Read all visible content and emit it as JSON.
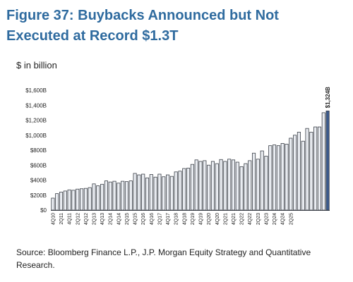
{
  "title": "Figure 37: Buybacks Announced but Not Executed at Record $1.3T",
  "units_label": "$ in billion",
  "source": "Source: Bloomberg Finance L.P., J.P. Morgan Equity Strategy and Quantitative Research.",
  "colors": {
    "title": "#2f6b9f",
    "bar_fill": "#e9ecf1",
    "bar_stroke": "#3a3f47",
    "last_bar_fill": "#3b5a8c"
  },
  "chart_data": {
    "type": "bar",
    "title": "Figure 37: Buybacks Announced but Not Executed at Record $1.3T",
    "xlabel": "",
    "ylabel": "$ in billion",
    "ylim": [
      0,
      1600
    ],
    "yticks": [
      0,
      200,
      400,
      600,
      800,
      1000,
      1200,
      1400,
      1600
    ],
    "ytick_labels": [
      "$0",
      "$200B",
      "$400B",
      "$600B",
      "$800B",
      "$1,000B",
      "$1,200B",
      "$1,400B",
      "$1,600B"
    ],
    "grid": false,
    "x_tick_labels": [
      "4Q10",
      "2Q11",
      "4Q11",
      "2Q12",
      "4Q12",
      "2Q13",
      "4Q13",
      "2Q14",
      "4Q14",
      "2Q15",
      "4Q15",
      "2Q16",
      "4Q16",
      "2Q17",
      "4Q17",
      "2Q18",
      "4Q18",
      "2Q19",
      "4Q19",
      "2Q20",
      "4Q20",
      "2Q21",
      "4Q21",
      "2Q22",
      "4Q22",
      "2Q23",
      "4Q23",
      "2Q24",
      "4Q24",
      "2Q25"
    ],
    "values": [
      160,
      220,
      240,
      255,
      270,
      265,
      280,
      285,
      290,
      300,
      350,
      325,
      345,
      390,
      375,
      385,
      360,
      385,
      380,
      390,
      490,
      470,
      480,
      430,
      475,
      440,
      480,
      445,
      470,
      450,
      510,
      520,
      555,
      560,
      610,
      670,
      650,
      660,
      600,
      650,
      620,
      675,
      650,
      680,
      670,
      640,
      580,
      620,
      660,
      760,
      680,
      790,
      720,
      860,
      870,
      860,
      890,
      880,
      960,
      1000,
      1040,
      920,
      1090,
      1040,
      1110,
      1110,
      1300,
      1324
    ],
    "annotations": [
      {
        "text": "$1,324B",
        "target": "last_bar"
      }
    ]
  }
}
